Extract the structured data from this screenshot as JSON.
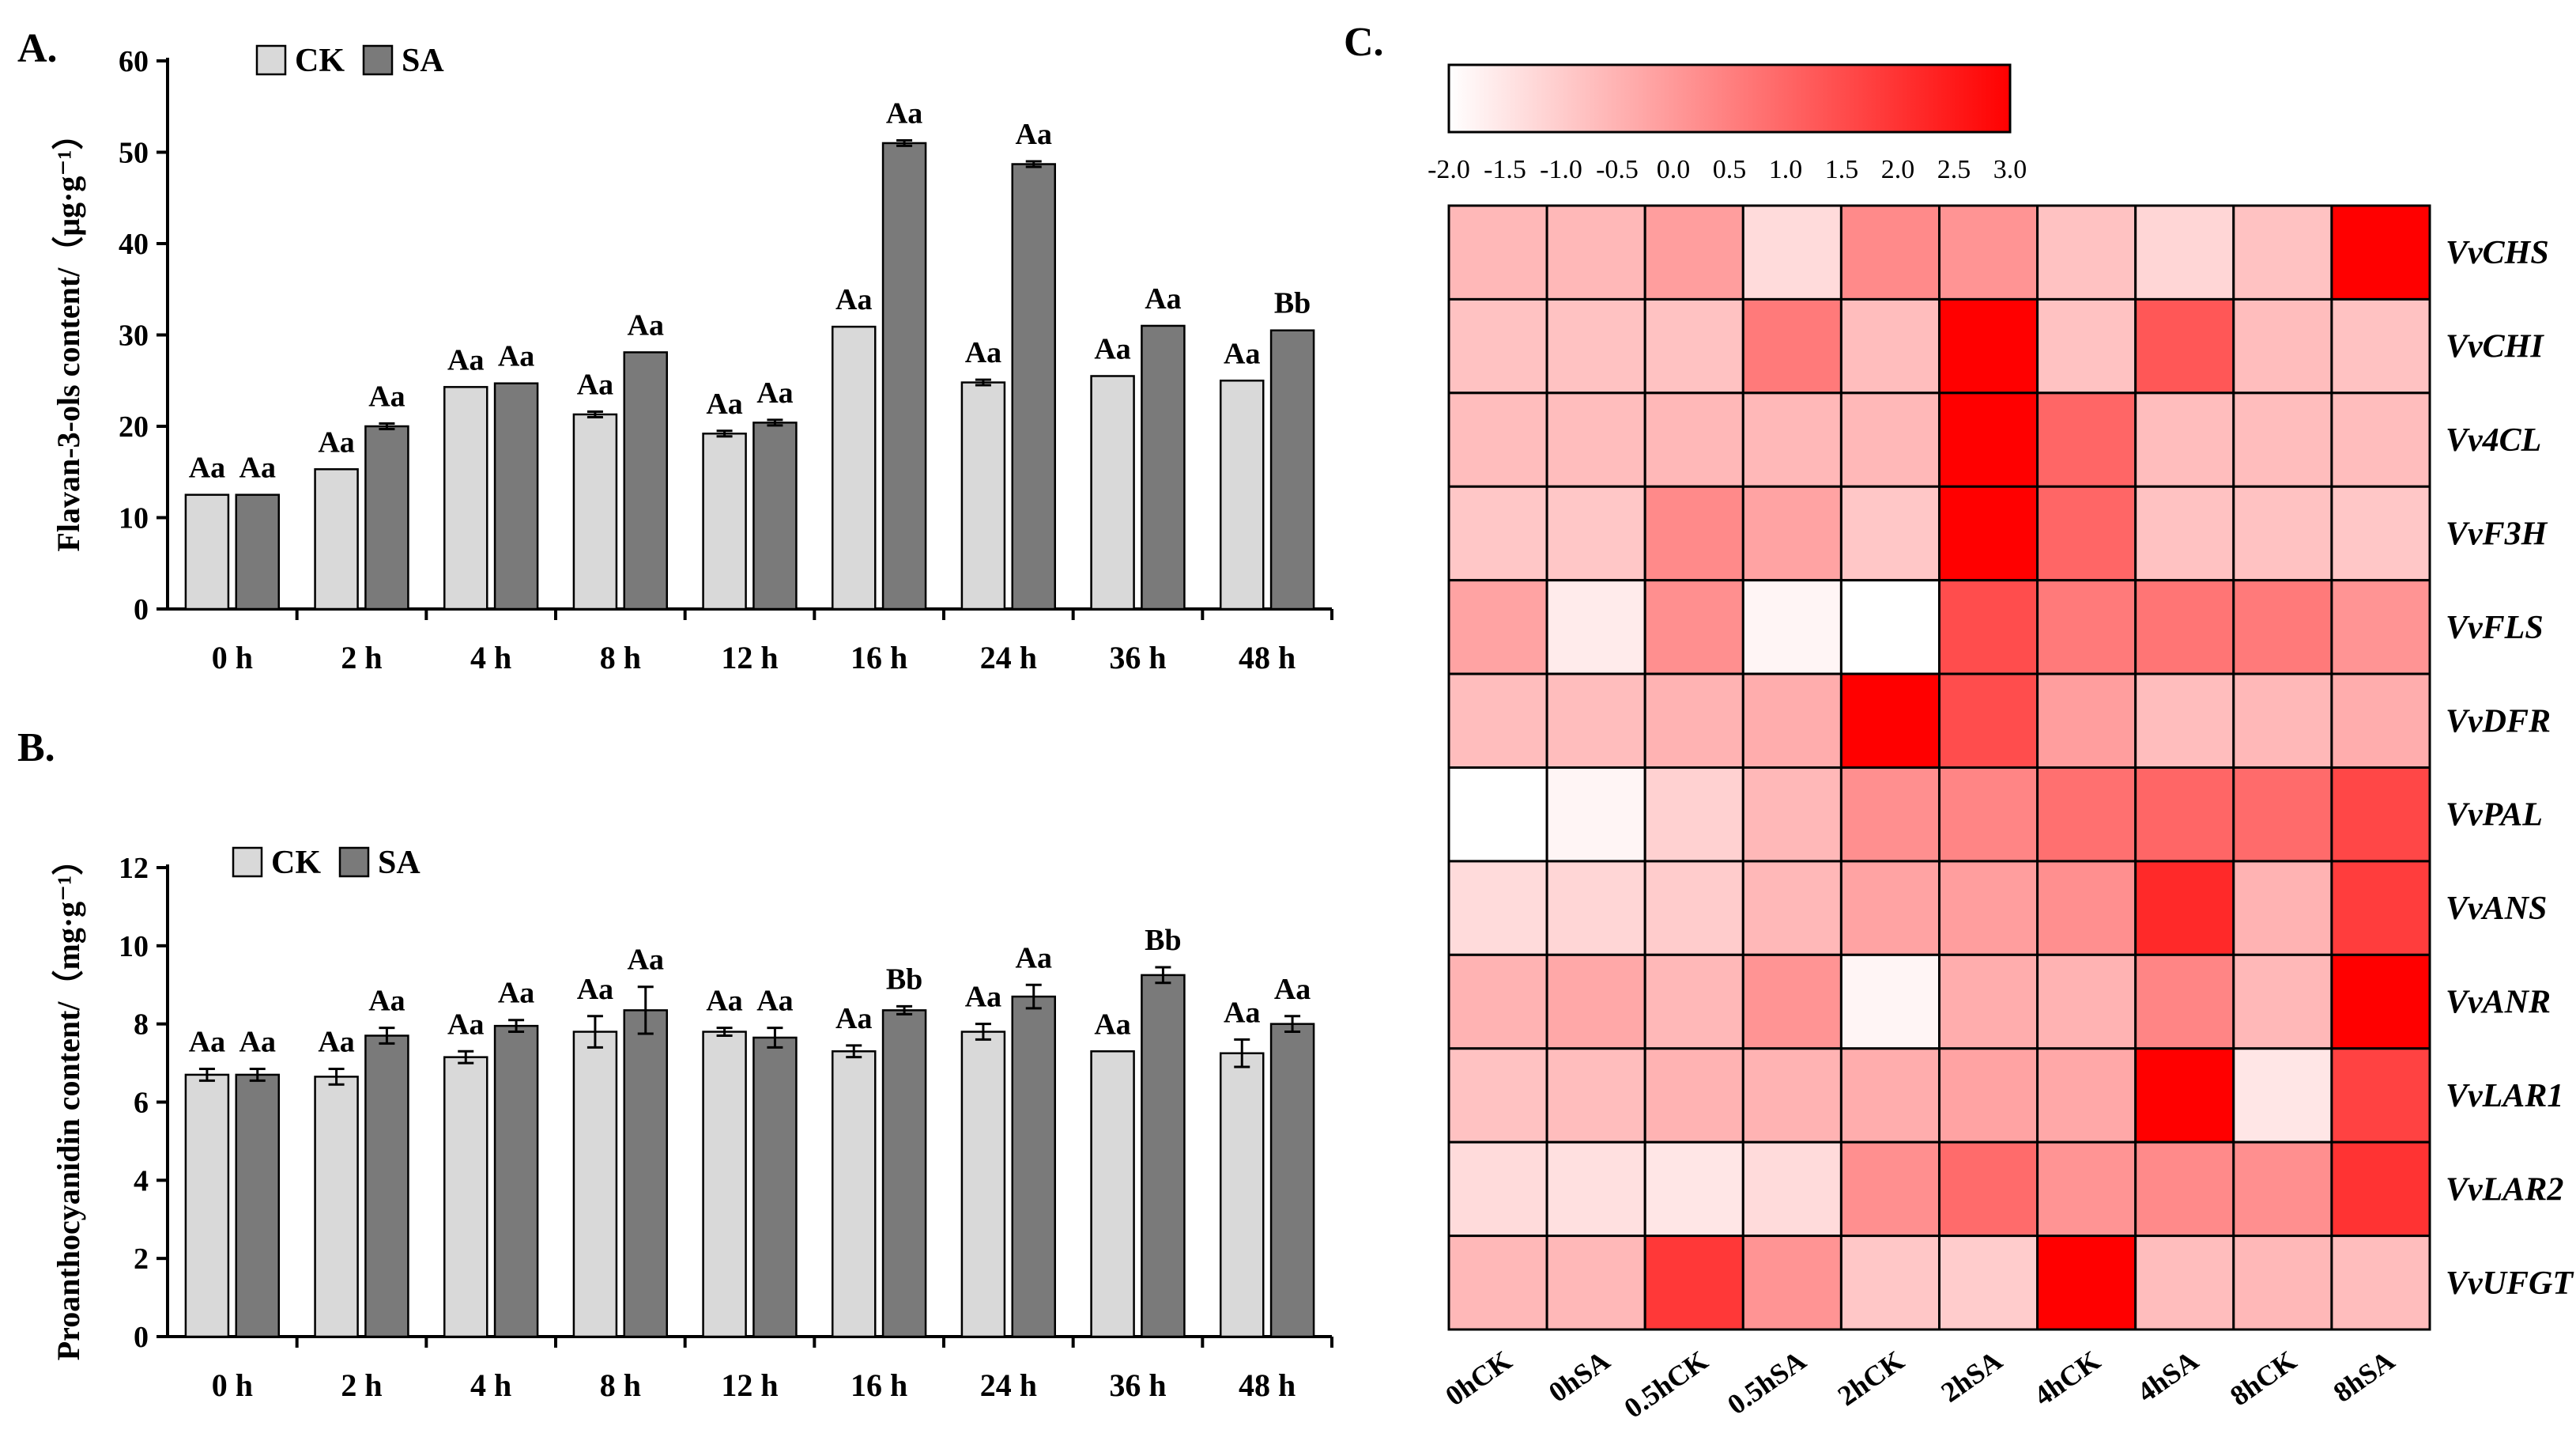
{
  "chart_data": [
    {
      "type": "bar",
      "panel": "A.",
      "ylabel": "Flavan-3-ols content/（μg·g⁻¹）",
      "ylim": [
        0,
        60
      ],
      "yticks": [
        "0",
        "10",
        "20",
        "30",
        "40",
        "50",
        "60"
      ],
      "categories": [
        "0 h",
        "2 h",
        "4 h",
        "8 h",
        "12 h",
        "16 h",
        "24 h",
        "36 h",
        "48 h"
      ],
      "series": [
        {
          "name": "CK",
          "values": [
            12.5,
            15.3,
            24.3,
            21.3,
            19.2,
            30.9,
            24.8,
            25.5,
            25.0
          ],
          "errors": [
            0,
            0,
            0,
            0.3,
            0.3,
            0,
            0.3,
            0,
            0
          ],
          "labels": [
            "Aa",
            "Aa",
            "Aa",
            "Aa",
            "Aa",
            "Aa",
            "Aa",
            "Aa",
            "Aa"
          ]
        },
        {
          "name": "SA",
          "values": [
            12.5,
            20.0,
            24.7,
            28.1,
            20.4,
            51.0,
            48.7,
            31.0,
            30.5
          ],
          "errors": [
            0,
            0.3,
            0,
            0,
            0.3,
            0.3,
            0.3,
            0,
            0
          ],
          "labels": [
            "Aa",
            "Aa",
            "Aa",
            "Aa",
            "Aa",
            "Aa",
            "Aa",
            "Aa",
            "Bb"
          ]
        }
      ],
      "legend": [
        "CK",
        "SA"
      ]
    },
    {
      "type": "bar",
      "panel": "B.",
      "ylabel": "Proanthocyanidin content/（mg·g⁻¹）",
      "ylim": [
        0,
        12
      ],
      "yticks": [
        "0",
        "2",
        "4",
        "6",
        "8",
        "10",
        "12"
      ],
      "categories": [
        "0 h",
        "2 h",
        "4 h",
        "8 h",
        "12 h",
        "16 h",
        "24 h",
        "36 h",
        "48 h"
      ],
      "series": [
        {
          "name": "CK",
          "values": [
            6.7,
            6.65,
            7.15,
            7.8,
            7.8,
            7.3,
            7.8,
            7.3,
            7.25
          ],
          "errors": [
            0.15,
            0.2,
            0.15,
            0.4,
            0.1,
            0.15,
            0.2,
            0,
            0.35
          ],
          "labels": [
            "Aa",
            "Aa",
            "Aa",
            "Aa",
            "Aa",
            "Aa",
            "Aa",
            "Aa",
            "Aa"
          ]
        },
        {
          "name": "SA",
          "values": [
            6.7,
            7.7,
            7.95,
            8.35,
            7.65,
            8.35,
            8.7,
            9.25,
            8.0
          ],
          "errors": [
            0.15,
            0.2,
            0.15,
            0.6,
            0.25,
            0.1,
            0.3,
            0.2,
            0.2
          ],
          "labels": [
            "Aa",
            "Aa",
            "Aa",
            "Aa",
            "Aa",
            "Bb",
            "Aa",
            "Bb",
            "Aa"
          ]
        }
      ],
      "legend": [
        "CK",
        "SA"
      ]
    },
    {
      "type": "heatmap",
      "panel": "C.",
      "colorbar_ticks": [
        "-2.0",
        "-1.5",
        "-1.0",
        "-0.5",
        "0.0",
        "0.5",
        "1.0",
        "1.5",
        "2.0",
        "2.5",
        "3.0"
      ],
      "colorbar_range": [
        -2.0,
        3.0
      ],
      "columns": [
        "0hCK",
        "0hSA",
        "0.5hCK",
        "0.5hSA",
        "2hCK",
        "2hSA",
        "4hCK",
        "4hSA",
        "8hCK",
        "8hSA"
      ],
      "rows": [
        "VvCHS",
        "VvCHI",
        "Vv4CL",
        "VvF3H",
        "VvFLS",
        "VvDFR",
        "VvPAL",
        "VvANS",
        "VvANR",
        "VvLAR1",
        "VvLAR2",
        "VvUFGT"
      ],
      "values": [
        [
          -0.6,
          -0.6,
          -0.1,
          -1.3,
          0.3,
          0.1,
          -0.8,
          -1.2,
          -0.8,
          3.0
        ],
        [
          -0.8,
          -0.8,
          -0.8,
          0.6,
          -0.7,
          3.0,
          -0.8,
          1.3,
          -0.7,
          -0.8
        ],
        [
          -0.7,
          -0.7,
          -0.6,
          -0.6,
          -0.6,
          3.0,
          1.0,
          -0.7,
          -0.7,
          -0.7
        ],
        [
          -0.9,
          -0.9,
          0.3,
          -0.2,
          -0.9,
          3.0,
          1.0,
          -0.8,
          -0.8,
          -0.9
        ],
        [
          -0.2,
          -1.6,
          0.2,
          -1.8,
          -2.0,
          1.5,
          0.6,
          0.7,
          0.6,
          0.1
        ],
        [
          -0.7,
          -0.7,
          -0.5,
          -0.4,
          3.0,
          1.5,
          -0.1,
          -0.7,
          -0.6,
          -0.4
        ],
        [
          -2.0,
          -1.8,
          -1.1,
          -0.6,
          0.2,
          0.4,
          0.8,
          1.0,
          0.9,
          1.6
        ],
        [
          -1.3,
          -1.2,
          -1.0,
          -0.6,
          -0.2,
          -0.1,
          0.2,
          2.2,
          -0.5,
          1.8
        ],
        [
          -0.5,
          -0.3,
          -0.6,
          0.1,
          -1.8,
          -0.4,
          -0.5,
          0.4,
          -0.6,
          3.0
        ],
        [
          -0.8,
          -0.7,
          -0.5,
          -0.5,
          -0.4,
          -0.2,
          -0.3,
          3.0,
          -1.5,
          1.7
        ],
        [
          -1.3,
          -1.4,
          -1.5,
          -1.3,
          0.2,
          0.9,
          0.1,
          0.3,
          0.2,
          2.0
        ],
        [
          -0.6,
          -0.6,
          1.9,
          0.1,
          -0.9,
          -1.0,
          3.0,
          -0.7,
          -0.6,
          -0.7
        ]
      ]
    }
  ]
}
